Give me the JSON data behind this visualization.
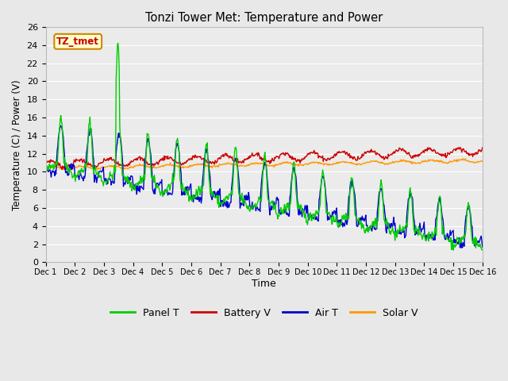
{
  "title": "Tonzi Tower Met: Temperature and Power",
  "xlabel": "Time",
  "ylabel": "Temperature (C) / Power (V)",
  "ylim": [
    0,
    26
  ],
  "yticks": [
    0,
    2,
    4,
    6,
    8,
    10,
    12,
    14,
    16,
    18,
    20,
    22,
    24,
    26
  ],
  "xlim": [
    0,
    15
  ],
  "xtick_labels": [
    "Dec 1",
    "Dec 2",
    "Dec 3",
    "Dec 4",
    "Dec 5",
    "Dec 6",
    "Dec 7",
    "Dec 8",
    "Dec 9",
    "Dec 10",
    "Dec 11",
    "Dec 12",
    "Dec 13",
    "Dec 14",
    "Dec 15",
    "Dec 16"
  ],
  "annotation_text": "TZ_tmet",
  "annotation_bg": "#ffffcc",
  "annotation_border": "#cc8800",
  "annotation_fg": "#cc0000",
  "colors": {
    "panel_t": "#00cc00",
    "battery_v": "#cc0000",
    "air_t": "#0000cc",
    "solar_v": "#ff9900"
  },
  "legend_labels": [
    "Panel T",
    "Battery V",
    "Air T",
    "Solar V"
  ],
  "bg_color": "#e8e8e8",
  "plot_bg": "#ebebeb",
  "grid_color": "#ffffff"
}
